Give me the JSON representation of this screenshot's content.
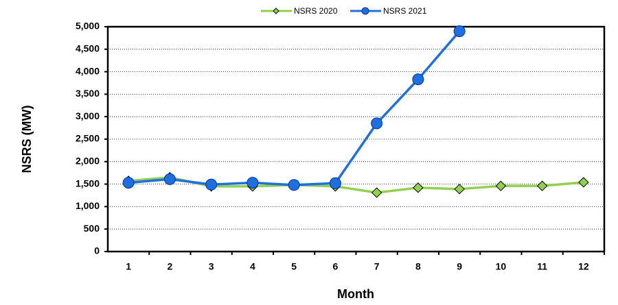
{
  "chart_data": {
    "type": "line",
    "categories": [
      "1",
      "2",
      "3",
      "4",
      "5",
      "6",
      "7",
      "8",
      "9",
      "10",
      "11",
      "12"
    ],
    "series": [
      {
        "name": "NSRS 2020",
        "color": "#92d050",
        "marker": "diamond",
        "values": [
          1570,
          1650,
          1450,
          1450,
          1480,
          1450,
          1310,
          1420,
          1390,
          1460,
          1460,
          1540
        ]
      },
      {
        "name": "NSRS 2021",
        "color": "#1f6fe0",
        "marker": "circle",
        "values": [
          1530,
          1610,
          1490,
          1530,
          1480,
          1520,
          2850,
          3830,
          4900,
          null,
          null,
          null
        ]
      }
    ],
    "xlabel": "Month",
    "ylabel": "NSRS (MW)",
    "ylim": [
      0,
      5000
    ],
    "yticks": [
      0,
      500,
      {
        "value": 1000,
        "label": "1,000"
      },
      {
        "value": 1500,
        "label": "1,500"
      },
      {
        "value": 2000,
        "label": "2,000"
      },
      {
        "value": 2500,
        "label": "2,500"
      },
      {
        "value": 3000,
        "label": "3,000"
      },
      {
        "value": 3500,
        "label": "3,500"
      },
      {
        "value": 4000,
        "label": "4,000"
      },
      {
        "value": 4500,
        "label": "4,500"
      },
      {
        "value": 5000,
        "label": "5,000"
      }
    ],
    "grid": true,
    "legend": "top"
  }
}
